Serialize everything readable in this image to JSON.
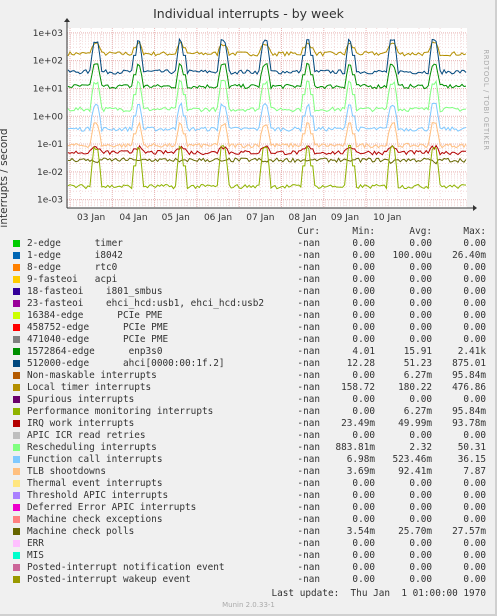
{
  "title": "Individual interrupts - by week",
  "watermark": "RRDTOOL / TOBI OETIKER",
  "footer_version": "Munin 2.0.33-1",
  "last_update_label": "Last update:",
  "last_update_value": "Thu Jan  1 01:00:00 1970",
  "table_header": {
    "cur": "Cur:",
    "min": "Min:",
    "avg": "Avg:",
    "max": "Max:"
  },
  "chart_data": {
    "type": "line",
    "title": "Individual interrupts - by week",
    "ylabel": "interrupts / second",
    "yscale": "log",
    "ylim": [
      0.0005,
      1500
    ],
    "ytick_values": [
      0.001,
      0.01,
      0.1,
      1,
      10,
      100,
      1000
    ],
    "ytick_labels": [
      "1e-03",
      "1e-02",
      "1e-01",
      "1e+00",
      "1e+01",
      "1e+02",
      "1e+03"
    ],
    "xtick_labels": [
      "03 Jan",
      "04 Jan",
      "05 Jan",
      "06 Jan",
      "07 Jan",
      "08 Jan",
      "09 Jan",
      "10 Jan"
    ],
    "grid": true,
    "series": [
      {
        "name": "2-edge      timer",
        "color": "#00cc00",
        "cur": "-nan",
        "min": "0.00",
        "avg": "0.00",
        "max": "0.00"
      },
      {
        "name": "1-edge      i8042",
        "color": "#0066b3",
        "cur": "-nan",
        "min": "0.00",
        "avg": "100.00u",
        "max": "26.40m"
      },
      {
        "name": "8-edge      rtc0",
        "color": "#ff8000",
        "cur": "-nan",
        "min": "0.00",
        "avg": "0.00",
        "max": "0.00"
      },
      {
        "name": "9-fasteoi   acpi",
        "color": "#ffcc00",
        "cur": "-nan",
        "min": "0.00",
        "avg": "0.00",
        "max": "0.00"
      },
      {
        "name": "18-fasteoi    i801_smbus",
        "color": "#330099",
        "cur": "-nan",
        "min": "0.00",
        "avg": "0.00",
        "max": "0.00"
      },
      {
        "name": "23-fasteoi    ehci_hcd:usb1, ehci_hcd:usb2",
        "color": "#990099",
        "cur": "-nan",
        "min": "0.00",
        "avg": "0.00",
        "max": "0.00"
      },
      {
        "name": "16384-edge      PCIe PME",
        "color": "#ccff00",
        "cur": "-nan",
        "min": "0.00",
        "avg": "0.00",
        "max": "0.00"
      },
      {
        "name": "458752-edge      PCIe PME",
        "color": "#ff0000",
        "cur": "-nan",
        "min": "0.00",
        "avg": "0.00",
        "max": "0.00"
      },
      {
        "name": "471040-edge      PCIe PME",
        "color": "#808080",
        "cur": "-nan",
        "min": "0.00",
        "avg": "0.00",
        "max": "0.00"
      },
      {
        "name": "1572864-edge      enp3s0",
        "color": "#008f00",
        "cur": "-nan",
        "min": "4.01",
        "avg": "15.91",
        "max": "2.41k"
      },
      {
        "name": "512000-edge      ahci[0000:00:1f.2]",
        "color": "#00487d",
        "cur": "-nan",
        "min": "12.28",
        "avg": "51.23",
        "max": "875.01"
      },
      {
        "name": "Non-maskable interrupts",
        "color": "#b35a00",
        "cur": "-nan",
        "min": "0.00",
        "avg": "6.27m",
        "max": "95.84m"
      },
      {
        "name": "Local timer interrupts",
        "color": "#b38f00",
        "cur": "-nan",
        "min": "158.72",
        "avg": "180.22",
        "max": "476.86"
      },
      {
        "name": "Spurious interrupts",
        "color": "#6b006b",
        "cur": "-nan",
        "min": "0.00",
        "avg": "0.00",
        "max": "0.00"
      },
      {
        "name": "Performance monitoring interrupts",
        "color": "#8fb300",
        "cur": "-nan",
        "min": "0.00",
        "avg": "6.27m",
        "max": "95.84m"
      },
      {
        "name": "IRQ work interrupts",
        "color": "#b30000",
        "cur": "-nan",
        "min": "23.49m",
        "avg": "49.99m",
        "max": "93.78m"
      },
      {
        "name": "APIC ICR read retries",
        "color": "#bebebe",
        "cur": "-nan",
        "min": "0.00",
        "avg": "0.00",
        "max": "0.00"
      },
      {
        "name": "Rescheduling interrupts",
        "color": "#80ff80",
        "cur": "-nan",
        "min": "883.81m",
        "avg": "2.32",
        "max": "50.31"
      },
      {
        "name": "Function call interrupts",
        "color": "#80c9ff",
        "cur": "-nan",
        "min": "6.98m",
        "avg": "523.46m",
        "max": "36.15"
      },
      {
        "name": "TLB shootdowns",
        "color": "#ffc080",
        "cur": "-nan",
        "min": "3.69m",
        "avg": "92.41m",
        "max": "7.87"
      },
      {
        "name": "Thermal event interrupts",
        "color": "#ffe680",
        "cur": "-nan",
        "min": "0.00",
        "avg": "0.00",
        "max": "0.00"
      },
      {
        "name": "Threshold APIC interrupts",
        "color": "#aa80ff",
        "cur": "-nan",
        "min": "0.00",
        "avg": "0.00",
        "max": "0.00"
      },
      {
        "name": "Deferred Error APIC interrupts",
        "color": "#ee00cc",
        "cur": "-nan",
        "min": "0.00",
        "avg": "0.00",
        "max": "0.00"
      },
      {
        "name": "Machine check exceptions",
        "color": "#ff8080",
        "cur": "-nan",
        "min": "0.00",
        "avg": "0.00",
        "max": "0.00"
      },
      {
        "name": "Machine check polls",
        "color": "#666600",
        "cur": "-nan",
        "min": "3.54m",
        "avg": "25.70m",
        "max": "27.57m"
      },
      {
        "name": "ERR",
        "color": "#ffbfff",
        "cur": "-nan",
        "min": "0.00",
        "avg": "0.00",
        "max": "0.00"
      },
      {
        "name": "MIS",
        "color": "#00ffcc",
        "cur": "-nan",
        "min": "0.00",
        "avg": "0.00",
        "max": "0.00"
      },
      {
        "name": "Posted-interrupt notification event",
        "color": "#cc6699",
        "cur": "-nan",
        "min": "0.00",
        "avg": "0.00",
        "max": "0.00"
      },
      {
        "name": "Posted-interrupt wakeup event",
        "color": "#999900",
        "cur": "-nan",
        "min": "0.00",
        "avg": "0.00",
        "max": "0.00"
      }
    ],
    "plotted_levels": [
      {
        "series": "Local timer interrupts",
        "base": 180,
        "spike": 476
      },
      {
        "series": "512000-edge      ahci[0000:00:1f.2]",
        "base": 40,
        "spike": 600
      },
      {
        "series": "1572864-edge      enp3s0",
        "base": 12,
        "spike": 80
      },
      {
        "series": "Rescheduling interrupts",
        "base": 1.8,
        "spike": 20
      },
      {
        "series": "Function call interrupts",
        "base": 0.35,
        "spike": 3
      },
      {
        "series": "TLB shootdowns",
        "base": 0.09,
        "spike": 0.6
      },
      {
        "series": "IRQ work interrupts",
        "base": 0.05,
        "spike": 0.09
      },
      {
        "series": "Machine check polls",
        "base": 0.027,
        "spike": 0.027
      },
      {
        "series": "Performance monitoring interrupts",
        "base": 0.003,
        "spike": 0.09
      }
    ]
  }
}
